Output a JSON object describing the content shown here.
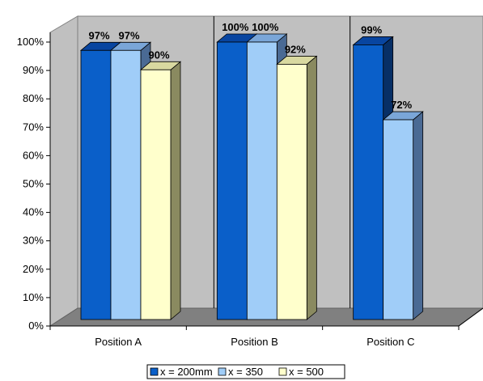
{
  "chart_data": {
    "type": "bar",
    "categories": [
      "Position A",
      "Position B",
      "Position C"
    ],
    "series": [
      {
        "name": "x = 200mm",
        "values": [
          97,
          100,
          99
        ],
        "labels": [
          "97%",
          "100%",
          "99%"
        ]
      },
      {
        "name": "x = 350",
        "values": [
          97,
          100,
          72
        ],
        "labels": [
          "97%",
          "100%",
          "72%"
        ]
      },
      {
        "name": "x = 500",
        "values": [
          90,
          92,
          null
        ],
        "labels": [
          "90%",
          "92%",
          ""
        ]
      }
    ],
    "y_ticks": [
      "0%",
      "10%",
      "20%",
      "30%",
      "40%",
      "50%",
      "60%",
      "70%",
      "80%",
      "90%",
      "100%"
    ],
    "ylim": [
      0,
      100
    ],
    "grid": false,
    "legend_position": "bottom",
    "colors": {
      "series_front": [
        "#0a5fc9",
        "#a0cdf8",
        "#ffffcc"
      ],
      "series_top": [
        "#0845a0",
        "#7aa6d8",
        "#d9d9a0"
      ],
      "series_side": [
        "#072f66",
        "#4a6a94",
        "#8a8a60"
      ],
      "wall": "#c0c0c0",
      "floor": "#808080",
      "axis": "#000000",
      "divider": "#000000"
    }
  }
}
